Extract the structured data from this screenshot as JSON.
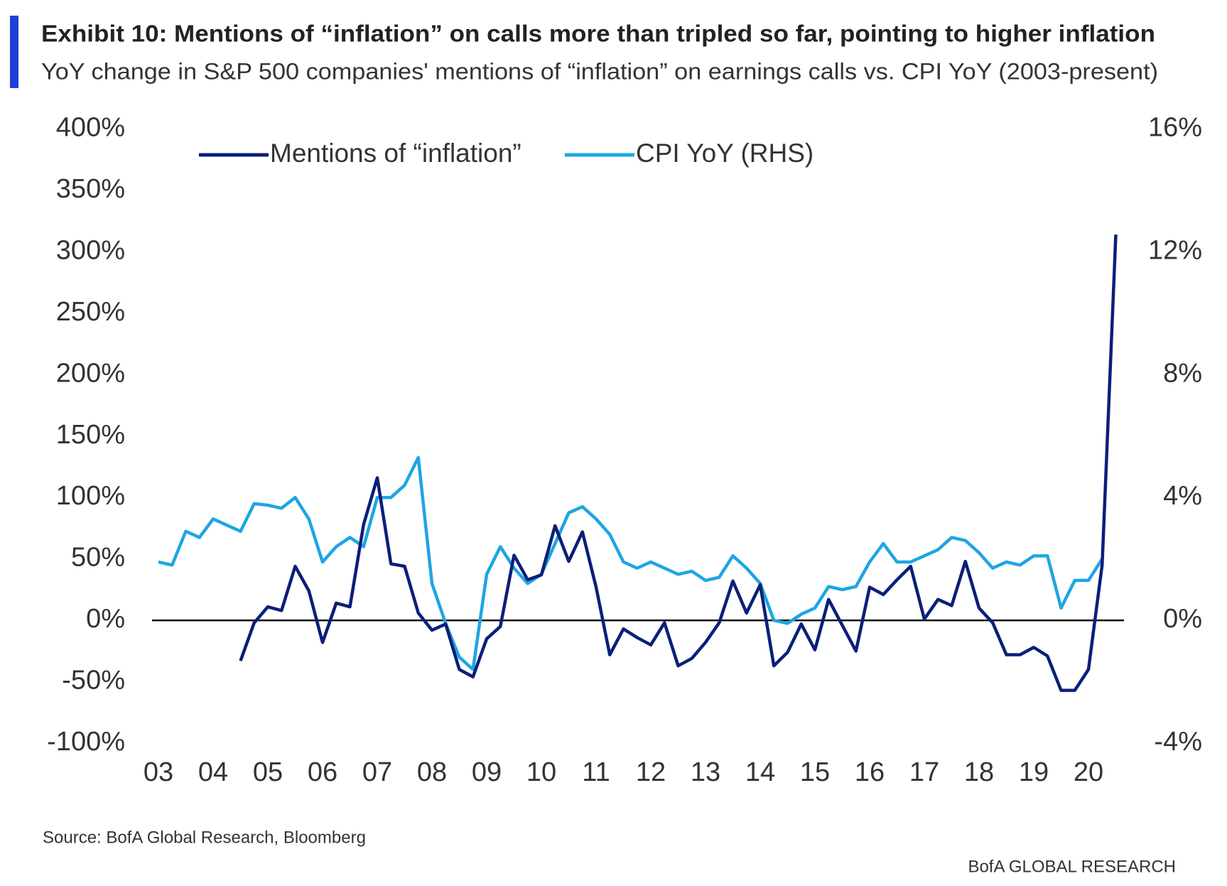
{
  "chart_data": {
    "type": "line",
    "title": "Exhibit 10: Mentions of “inflation” on calls more than tripled so far, pointing to higher inflation",
    "subtitle": "YoY change in S&P 500 companies' mentions of “inflation” on earnings calls vs. CPI YoY (2003-present)",
    "source": "Source:  BofA Global Research, Bloomberg",
    "branding": "BofA GLOBAL RESEARCH",
    "categories": [
      "03",
      null,
      null,
      null,
      "04",
      null,
      null,
      null,
      "05",
      null,
      null,
      null,
      "06",
      null,
      null,
      null,
      "07",
      null,
      null,
      null,
      "08",
      null,
      null,
      null,
      "09",
      null,
      null,
      null,
      "10",
      null,
      null,
      null,
      "11",
      null,
      null,
      null,
      "12",
      null,
      null,
      null,
      "13",
      null,
      null,
      null,
      "14",
      null,
      null,
      null,
      "15",
      null,
      null,
      null,
      "16",
      null,
      null,
      null,
      "17",
      null,
      null,
      null,
      "18",
      null,
      null,
      null,
      "19",
      null,
      null,
      null,
      "20",
      null,
      null
    ],
    "series": [
      {
        "name": "Mentions of “inflation”",
        "color": "#0b1f78",
        "values": [
          null,
          null,
          null,
          null,
          null,
          null,
          -33,
          -2,
          11,
          8,
          44,
          24,
          -18,
          14,
          11,
          78,
          116,
          46,
          44,
          6,
          -8,
          -3,
          -40,
          -46,
          -15,
          -5,
          53,
          33,
          37,
          77,
          48,
          72,
          27,
          -28,
          -7,
          -14,
          -20,
          -2,
          -37,
          -31,
          -18,
          -2,
          32,
          6,
          29,
          -37,
          -26,
          -3,
          -24,
          17,
          -4,
          -25,
          27,
          21,
          33,
          44,
          1,
          17,
          12,
          48,
          10,
          -2,
          -28,
          -28,
          -22,
          -29,
          -57,
          -57,
          -40,
          45,
          314
        ]
      },
      {
        "name": "CPI YoY (RHS)",
        "color": "#1ea5e3",
        "axis": "y2",
        "values": [
          1.9,
          1.8,
          2.9,
          2.7,
          3.3,
          3.1,
          2.9,
          3.8,
          3.75,
          3.65,
          4.0,
          3.3,
          1.9,
          2.4,
          2.7,
          2.4,
          4.0,
          4.0,
          4.4,
          5.3,
          1.2,
          -0.1,
          -1.2,
          -1.6,
          1.5,
          2.4,
          1.7,
          1.2,
          1.5,
          2.5,
          3.5,
          3.7,
          3.3,
          2.8,
          1.9,
          1.7,
          1.9,
          1.7,
          1.5,
          1.6,
          1.3,
          1.4,
          2.1,
          1.7,
          1.2,
          0.0,
          -0.1,
          0.2,
          0.4,
          1.1,
          1.0,
          1.1,
          1.9,
          2.5,
          1.9,
          1.9,
          2.1,
          2.3,
          2.7,
          2.6,
          2.2,
          1.7,
          1.9,
          1.8,
          2.1,
          2.1,
          0.4,
          1.3,
          1.3,
          2.0,
          null
        ]
      }
    ],
    "ylim": [
      -100,
      400
    ],
    "yticks": [
      {
        "value": -100,
        "label": "-100%"
      },
      {
        "value": -50,
        "label": "-50%"
      },
      {
        "value": 0,
        "label": "0%"
      },
      {
        "value": 50,
        "label": "50%"
      },
      {
        "value": 100,
        "label": "100%"
      },
      {
        "value": 150,
        "label": "150%"
      },
      {
        "value": 200,
        "label": "200%"
      },
      {
        "value": 250,
        "label": "250%"
      },
      {
        "value": 300,
        "label": "300%"
      },
      {
        "value": 350,
        "label": "350%"
      },
      {
        "value": 400,
        "label": "400%"
      }
    ],
    "y2lim": [
      -4,
      16
    ],
    "y2ticks": [
      {
        "value": -4,
        "label": "-4%"
      },
      {
        "value": 0,
        "label": "0%"
      },
      {
        "value": 4,
        "label": "4%"
      },
      {
        "value": 8,
        "label": "8%"
      },
      {
        "value": 12,
        "label": "12%"
      },
      {
        "value": 16,
        "label": "16%"
      }
    ],
    "zero_line": true
  }
}
